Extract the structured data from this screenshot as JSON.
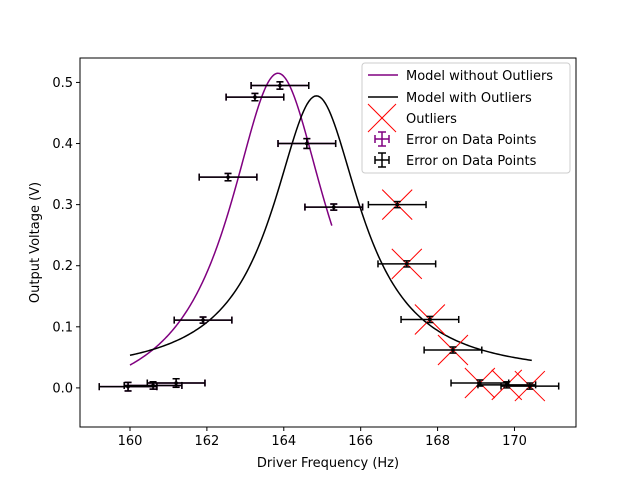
{
  "chart_data": {
    "type": "scatter",
    "xlabel": "Driver Frequency (Hz)",
    "ylabel": "Output Voltage (V)",
    "xlim": [
      158.7,
      171.6
    ],
    "ylim": [
      -0.064,
      0.54
    ],
    "xticks": [
      160,
      162,
      164,
      166,
      168,
      170
    ],
    "yticks": [
      0.0,
      0.1,
      0.2,
      0.3,
      0.4,
      0.5
    ],
    "xtick_labels": [
      "160",
      "162",
      "164",
      "166",
      "168",
      "170"
    ],
    "ytick_labels": [
      "0.0",
      "0.1",
      "0.2",
      "0.3",
      "0.4",
      "0.5"
    ],
    "grid": false,
    "legend_position": "top-right",
    "colors": {
      "model_without": "#800080",
      "model_with": "#000000",
      "outliers": "#ff0000",
      "err_without": "#800080",
      "err_with": "#000000"
    },
    "models": [
      {
        "name": "Model without Outliers",
        "color": "#800080",
        "x0": 163.85,
        "amp": 0.555,
        "w": 1.55,
        "offset": -0.04,
        "xrange": [
          160.0,
          165.25
        ]
      },
      {
        "name": "Model with Outliers",
        "color": "#000000",
        "x0": 164.85,
        "amp": 0.46,
        "w": 1.4,
        "offset": 0.018,
        "xrange": [
          160.0,
          170.45
        ]
      }
    ],
    "legend": {
      "model_without": "Model without Outliers",
      "model_with": "Model with Outliers",
      "outliers": "Outliers",
      "err_without": "Error on Data Points",
      "err_with": "Error on Data Points"
    },
    "points": [
      {
        "x": 159.95,
        "y": 0.002,
        "xerr": 0.75,
        "yerr": 0.007,
        "outlier": false
      },
      {
        "x": 160.6,
        "y": 0.004,
        "xerr": 0.75,
        "yerr": 0.006,
        "outlier": false
      },
      {
        "x": 161.2,
        "y": 0.008,
        "xerr": 0.75,
        "yerr": 0.007,
        "outlier": false
      },
      {
        "x": 161.9,
        "y": 0.111,
        "xerr": 0.75,
        "yerr": 0.005,
        "outlier": false
      },
      {
        "x": 162.55,
        "y": 0.345,
        "xerr": 0.75,
        "yerr": 0.006,
        "outlier": false
      },
      {
        "x": 163.25,
        "y": 0.476,
        "xerr": 0.75,
        "yerr": 0.006,
        "outlier": false
      },
      {
        "x": 163.9,
        "y": 0.495,
        "xerr": 0.75,
        "yerr": 0.006,
        "outlier": false
      },
      {
        "x": 164.6,
        "y": 0.4,
        "xerr": 0.75,
        "yerr": 0.008,
        "outlier": false
      },
      {
        "x": 165.3,
        "y": 0.296,
        "xerr": 0.75,
        "yerr": 0.005,
        "outlier": false
      },
      {
        "x": 166.95,
        "y": 0.3,
        "xerr": 0.75,
        "yerr": 0.005,
        "outlier": true
      },
      {
        "x": 167.2,
        "y": 0.203,
        "xerr": 0.75,
        "yerr": 0.005,
        "outlier": true
      },
      {
        "x": 167.8,
        "y": 0.112,
        "xerr": 0.75,
        "yerr": 0.005,
        "outlier": true
      },
      {
        "x": 168.4,
        "y": 0.062,
        "xerr": 0.75,
        "yerr": 0.005,
        "outlier": true
      },
      {
        "x": 169.1,
        "y": 0.008,
        "xerr": 0.75,
        "yerr": 0.005,
        "outlier": true
      },
      {
        "x": 169.8,
        "y": 0.005,
        "xerr": 0.75,
        "yerr": 0.005,
        "outlier": true
      },
      {
        "x": 170.4,
        "y": 0.003,
        "xerr": 0.75,
        "yerr": 0.005,
        "outlier": true
      }
    ]
  }
}
